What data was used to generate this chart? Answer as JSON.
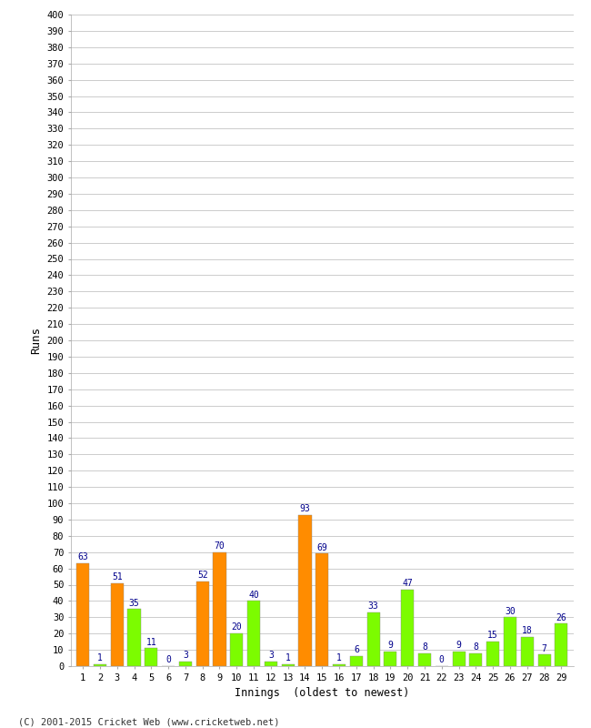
{
  "innings": [
    1,
    2,
    3,
    4,
    5,
    6,
    7,
    8,
    9,
    10,
    11,
    12,
    13,
    14,
    15,
    16,
    17,
    18,
    19,
    20,
    21,
    22,
    23,
    24,
    25,
    26,
    27,
    28,
    29
  ],
  "values": [
    63,
    1,
    51,
    35,
    11,
    0,
    3,
    52,
    70,
    20,
    40,
    3,
    1,
    93,
    69,
    1,
    6,
    33,
    9,
    47,
    8,
    0,
    9,
    8,
    15,
    30,
    18,
    7,
    26
  ],
  "colors": [
    "#FF8C00",
    "#7CFC00",
    "#FF8C00",
    "#7CFC00",
    "#7CFC00",
    "#7CFC00",
    "#7CFC00",
    "#FF8C00",
    "#FF8C00",
    "#7CFC00",
    "#7CFC00",
    "#7CFC00",
    "#7CFC00",
    "#FF8C00",
    "#FF8C00",
    "#7CFC00",
    "#7CFC00",
    "#7CFC00",
    "#7CFC00",
    "#7CFC00",
    "#7CFC00",
    "#7CFC00",
    "#7CFC00",
    "#7CFC00",
    "#7CFC00",
    "#7CFC00",
    "#7CFC00",
    "#7CFC00",
    "#7CFC00"
  ],
  "ylabel": "Runs",
  "xlabel": "Innings  (oldest to newest)",
  "ylim": [
    0,
    400
  ],
  "yticks": [
    0,
    10,
    20,
    30,
    40,
    50,
    60,
    70,
    80,
    90,
    100,
    110,
    120,
    130,
    140,
    150,
    160,
    170,
    180,
    190,
    200,
    210,
    220,
    230,
    240,
    250,
    260,
    270,
    280,
    290,
    300,
    310,
    320,
    330,
    340,
    350,
    360,
    370,
    380,
    390,
    400
  ],
  "footer": "(C) 2001-2015 Cricket Web (www.cricketweb.net)",
  "label_color": "#00008B",
  "background_color": "#FFFFFF",
  "grid_color": "#CCCCCC",
  "bar_edge_color": "#888888"
}
